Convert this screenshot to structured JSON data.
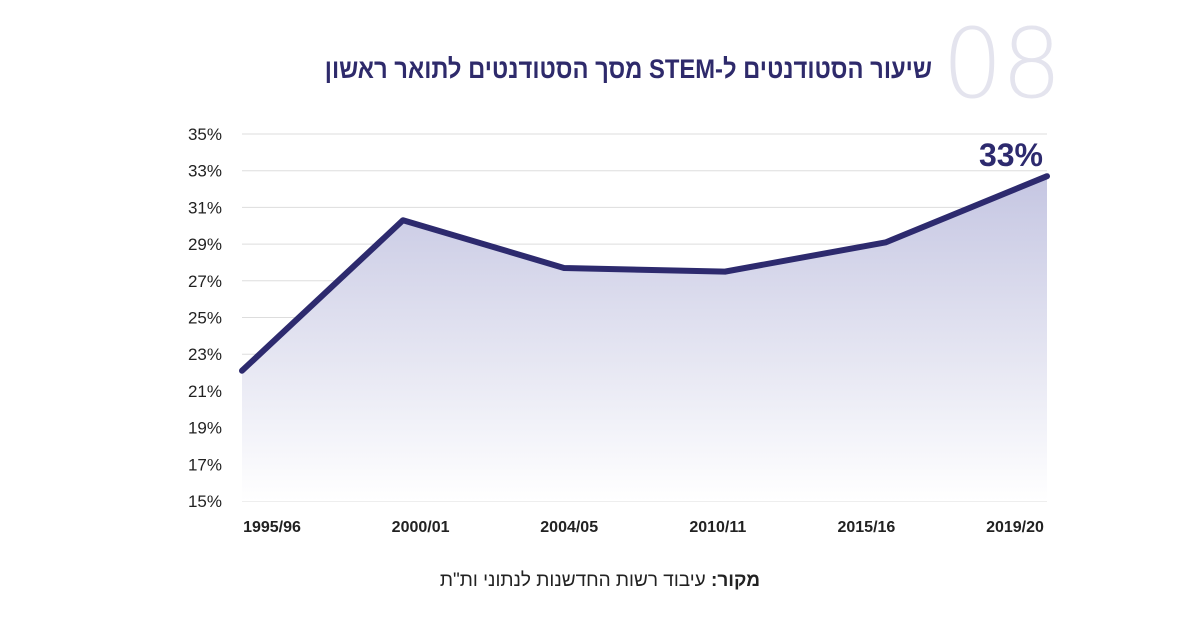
{
  "header": {
    "number": "08",
    "title": "שיעור הסטודנטים ל-STEM מסך הסטודנטים לתואר ראשון"
  },
  "chart_data": {
    "type": "area",
    "title": "שיעור הסטודנטים ל-STEM מסך הסטודנטים לתואר ראשון",
    "categories": [
      "1995/96",
      "2000/01",
      "2004/05",
      "2010/11",
      "2015/16",
      "2019/20"
    ],
    "values": [
      22.1,
      30.3,
      27.7,
      27.5,
      29.1,
      32.7
    ],
    "ylim": [
      15,
      35
    ],
    "yticks": [
      15,
      17,
      19,
      21,
      23,
      25,
      27,
      29,
      31,
      33,
      35
    ],
    "ytick_labels": [
      "15%",
      "17%",
      "19%",
      "21%",
      "23%",
      "25%",
      "27%",
      "29%",
      "31%",
      "33%",
      "35%"
    ],
    "grid": true,
    "annotation": "33%",
    "xlabel": "",
    "ylabel": "",
    "colors": {
      "line": "#2d2a6e",
      "fill_top": "#c5c6e2",
      "fill_bottom": "#ffffff",
      "grid": "#dddddd"
    }
  },
  "source": {
    "label": "מקור:",
    "text": " עיבוד רשות החדשנות לנתוני ות\"ת"
  }
}
